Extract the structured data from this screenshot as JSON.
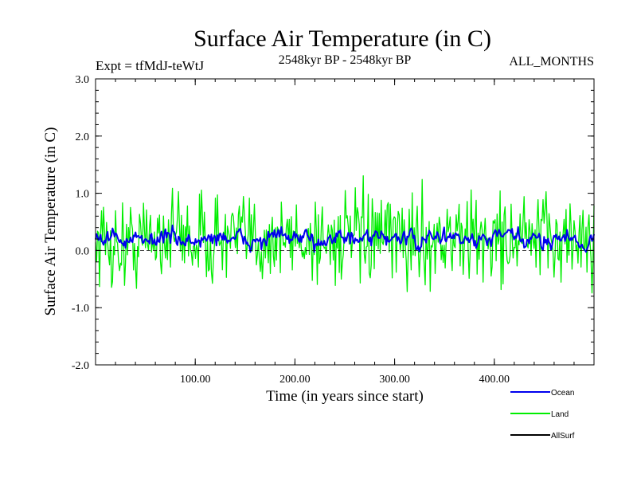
{
  "chart_data": {
    "type": "line",
    "title": "Surface Air Temperature (in C)",
    "subtitle_left": "Expt = tfMdJ-teWtJ",
    "subtitle_center": "2548kyr BP - 2548kyr BP",
    "subtitle_right": "ALL_MONTHS",
    "xlabel": "Time (in years since start)",
    "ylabel": "Surface Air Temperature (in C)",
    "xlim": [
      0,
      500
    ],
    "ylim": [
      -2.0,
      3.0
    ],
    "x_ticks": [
      100,
      200,
      300,
      400
    ],
    "x_tick_labels": [
      "100.00",
      "200.00",
      "300.00",
      "400.00"
    ],
    "y_ticks": [
      -2.0,
      -1.0,
      0.0,
      1.0,
      2.0,
      3.0
    ],
    "y_tick_labels": [
      "-2.0",
      "-1.0",
      "0.0",
      "1.0",
      "2.0",
      "3.0"
    ],
    "series": [
      {
        "name": "Land",
        "color": "#00ee00",
        "mean": 0.2,
        "amplitude": 0.55,
        "n": 500
      },
      {
        "name": "Ocean",
        "color": "#0000ee",
        "mean": 0.2,
        "amplitude": 0.13,
        "n": 500
      },
      {
        "name": "AllSurf",
        "color": "#000000",
        "mean": 0.0,
        "amplitude": 0.0,
        "n": 2
      }
    ],
    "legend": {
      "position": "bottom-right",
      "labels": [
        "Ocean",
        "Land",
        "AllSurf"
      ]
    }
  }
}
